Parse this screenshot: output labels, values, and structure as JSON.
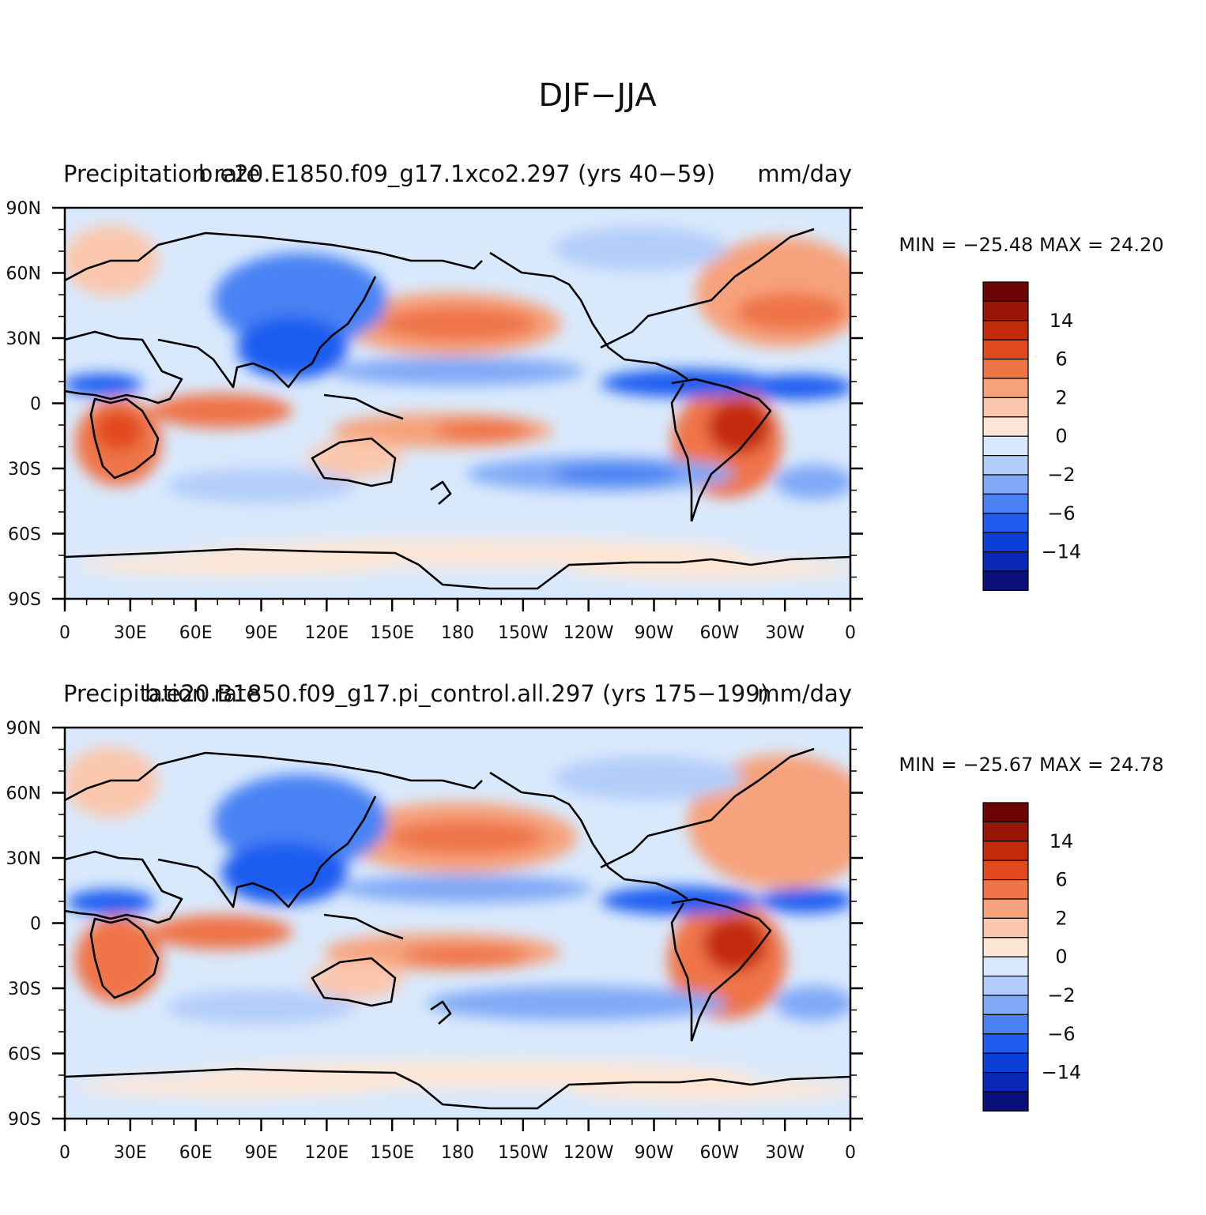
{
  "figure": {
    "title": "DJF−JJA"
  },
  "colors": {
    "levels": [
      "#0a0f7a",
      "#0a28b8",
      "#0c3fd8",
      "#1f5df0",
      "#4a82f4",
      "#80a9f7",
      "#b3cdfa",
      "#d9e9fc",
      "#fde6d6",
      "#fbc7ae",
      "#f6a27c",
      "#ef7448",
      "#e2491f",
      "#c42a0c",
      "#9a1606",
      "#6e0505"
    ],
    "coast": "#000000"
  },
  "panels": [
    {
      "id": "top",
      "left_title": "Precipitation rate",
      "center_title": "b.e20.E1850.f09_g17.1xco2.297 (yrs 40−59)",
      "right_title": "mm/day",
      "min_max": "MIN = −25.48  MAX =   24.20"
    },
    {
      "id": "bottom",
      "left_title": "Precipitation rate",
      "center_title": "b.e20.B1850.f09_g17.pi_control.all.297 (yrs 175−199)",
      "right_title": "mm/day",
      "min_max": "MIN = −25.67  MAX =   24.78"
    }
  ],
  "axes": {
    "lat_labels": [
      "90N",
      "60N",
      "30N",
      "0",
      "30S",
      "60S",
      "90S"
    ],
    "lon_labels": [
      "0",
      "30E",
      "60E",
      "90E",
      "120E",
      "150E",
      "180",
      "150W",
      "120W",
      "90W",
      "60W",
      "30W",
      "0"
    ]
  },
  "colorbar": {
    "labels": [
      "14",
      "6",
      "2",
      "0",
      "−2",
      "−6",
      "−14"
    ]
  }
}
